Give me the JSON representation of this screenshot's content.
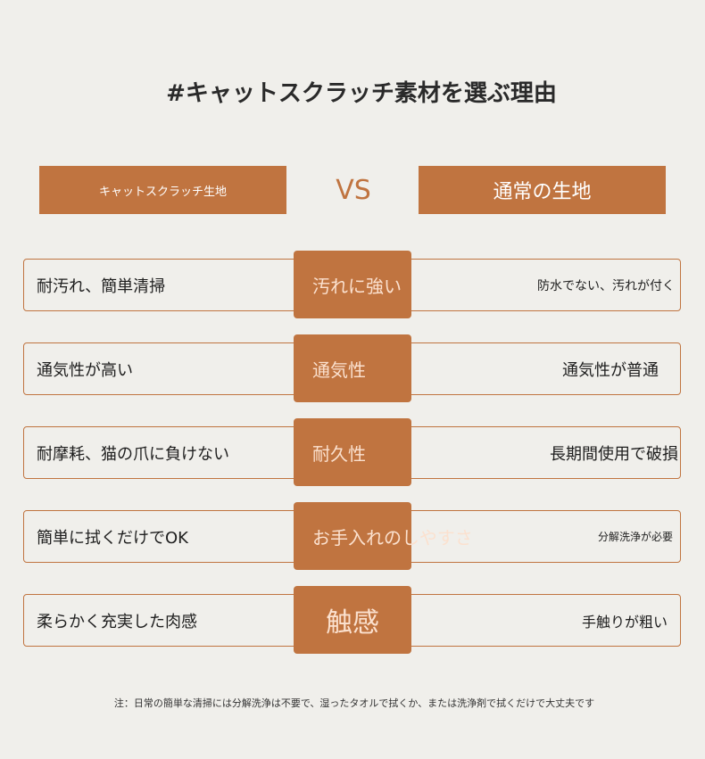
{
  "title": "#キャットスクラッチ素材を選ぶ理由",
  "header": {
    "left": "キャットスクラッチ生地",
    "vs": "VS",
    "right": "通常の生地"
  },
  "colors": {
    "accent": "#c07440",
    "background": "#f0efeb"
  },
  "rows": [
    {
      "left": "耐汚れ、簡単清掃",
      "label": "汚れに強い",
      "right": "防水でない、汚れが付く"
    },
    {
      "left": "通気性が高い",
      "label": "通気性",
      "right": "通気性が普通"
    },
    {
      "left": "耐摩耗、猫の爪に負けない",
      "label": "耐久性",
      "right": "長期間使用で破損"
    },
    {
      "left": "簡単に拭くだけでOK",
      "label": "お手入れのしやすさ",
      "right": "分解洗浄が必要"
    },
    {
      "left": "柔らかく充実した肉感",
      "label": "触感",
      "right": "手触りが粗い"
    }
  ],
  "note": "注：日常の簡単な清掃には分解洗浄は不要で、湿ったタオルで拭くか、または洗浄剤で拭くだけで大丈夫です"
}
